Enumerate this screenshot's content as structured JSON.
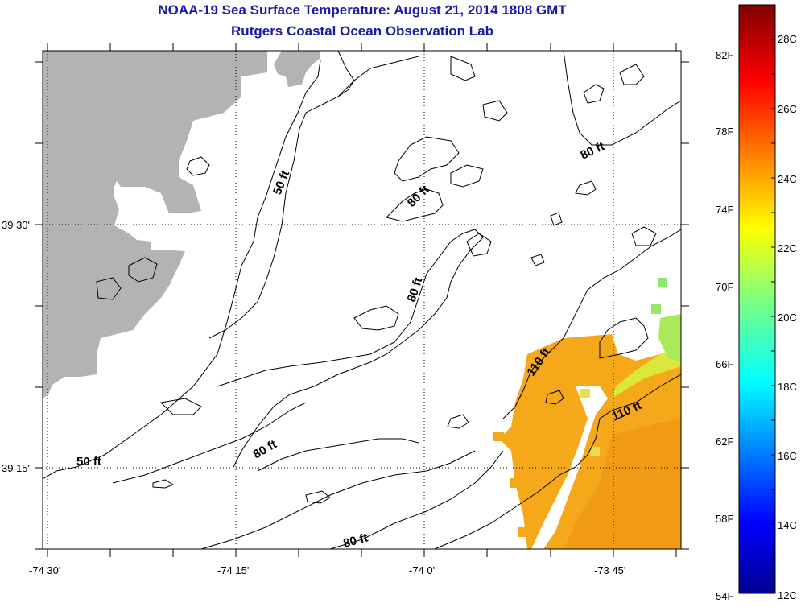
{
  "header": {
    "title": "NOAA-19 Sea Surface Temperature:  August 21, 2014 1808 GMT",
    "subtitle": "Rutgers Coastal Ocean Observation Lab"
  },
  "map": {
    "lon_labels": [
      "-74 30'",
      "-74 15'",
      "-74 0'",
      "-73 45'"
    ],
    "lat_labels": [
      "39 30'",
      "39 15'"
    ],
    "land_color": "#b3b3b3",
    "contour_labels": [
      "50 ft",
      "50 ft",
      "80 ft",
      "80 ft",
      "80 ft",
      "80 ft",
      "80 ft",
      "110 ft",
      "110 ft"
    ]
  },
  "colorbar": {
    "fahrenheit_labels": [
      "82F",
      "78F",
      "74F",
      "70F",
      "66F",
      "62F",
      "58F",
      "54F"
    ],
    "celsius_labels": [
      "28C",
      "26C",
      "24C",
      "22C",
      "20C",
      "18C",
      "16C",
      "14C",
      "12C"
    ],
    "range_celsius": [
      12,
      29
    ]
  }
}
